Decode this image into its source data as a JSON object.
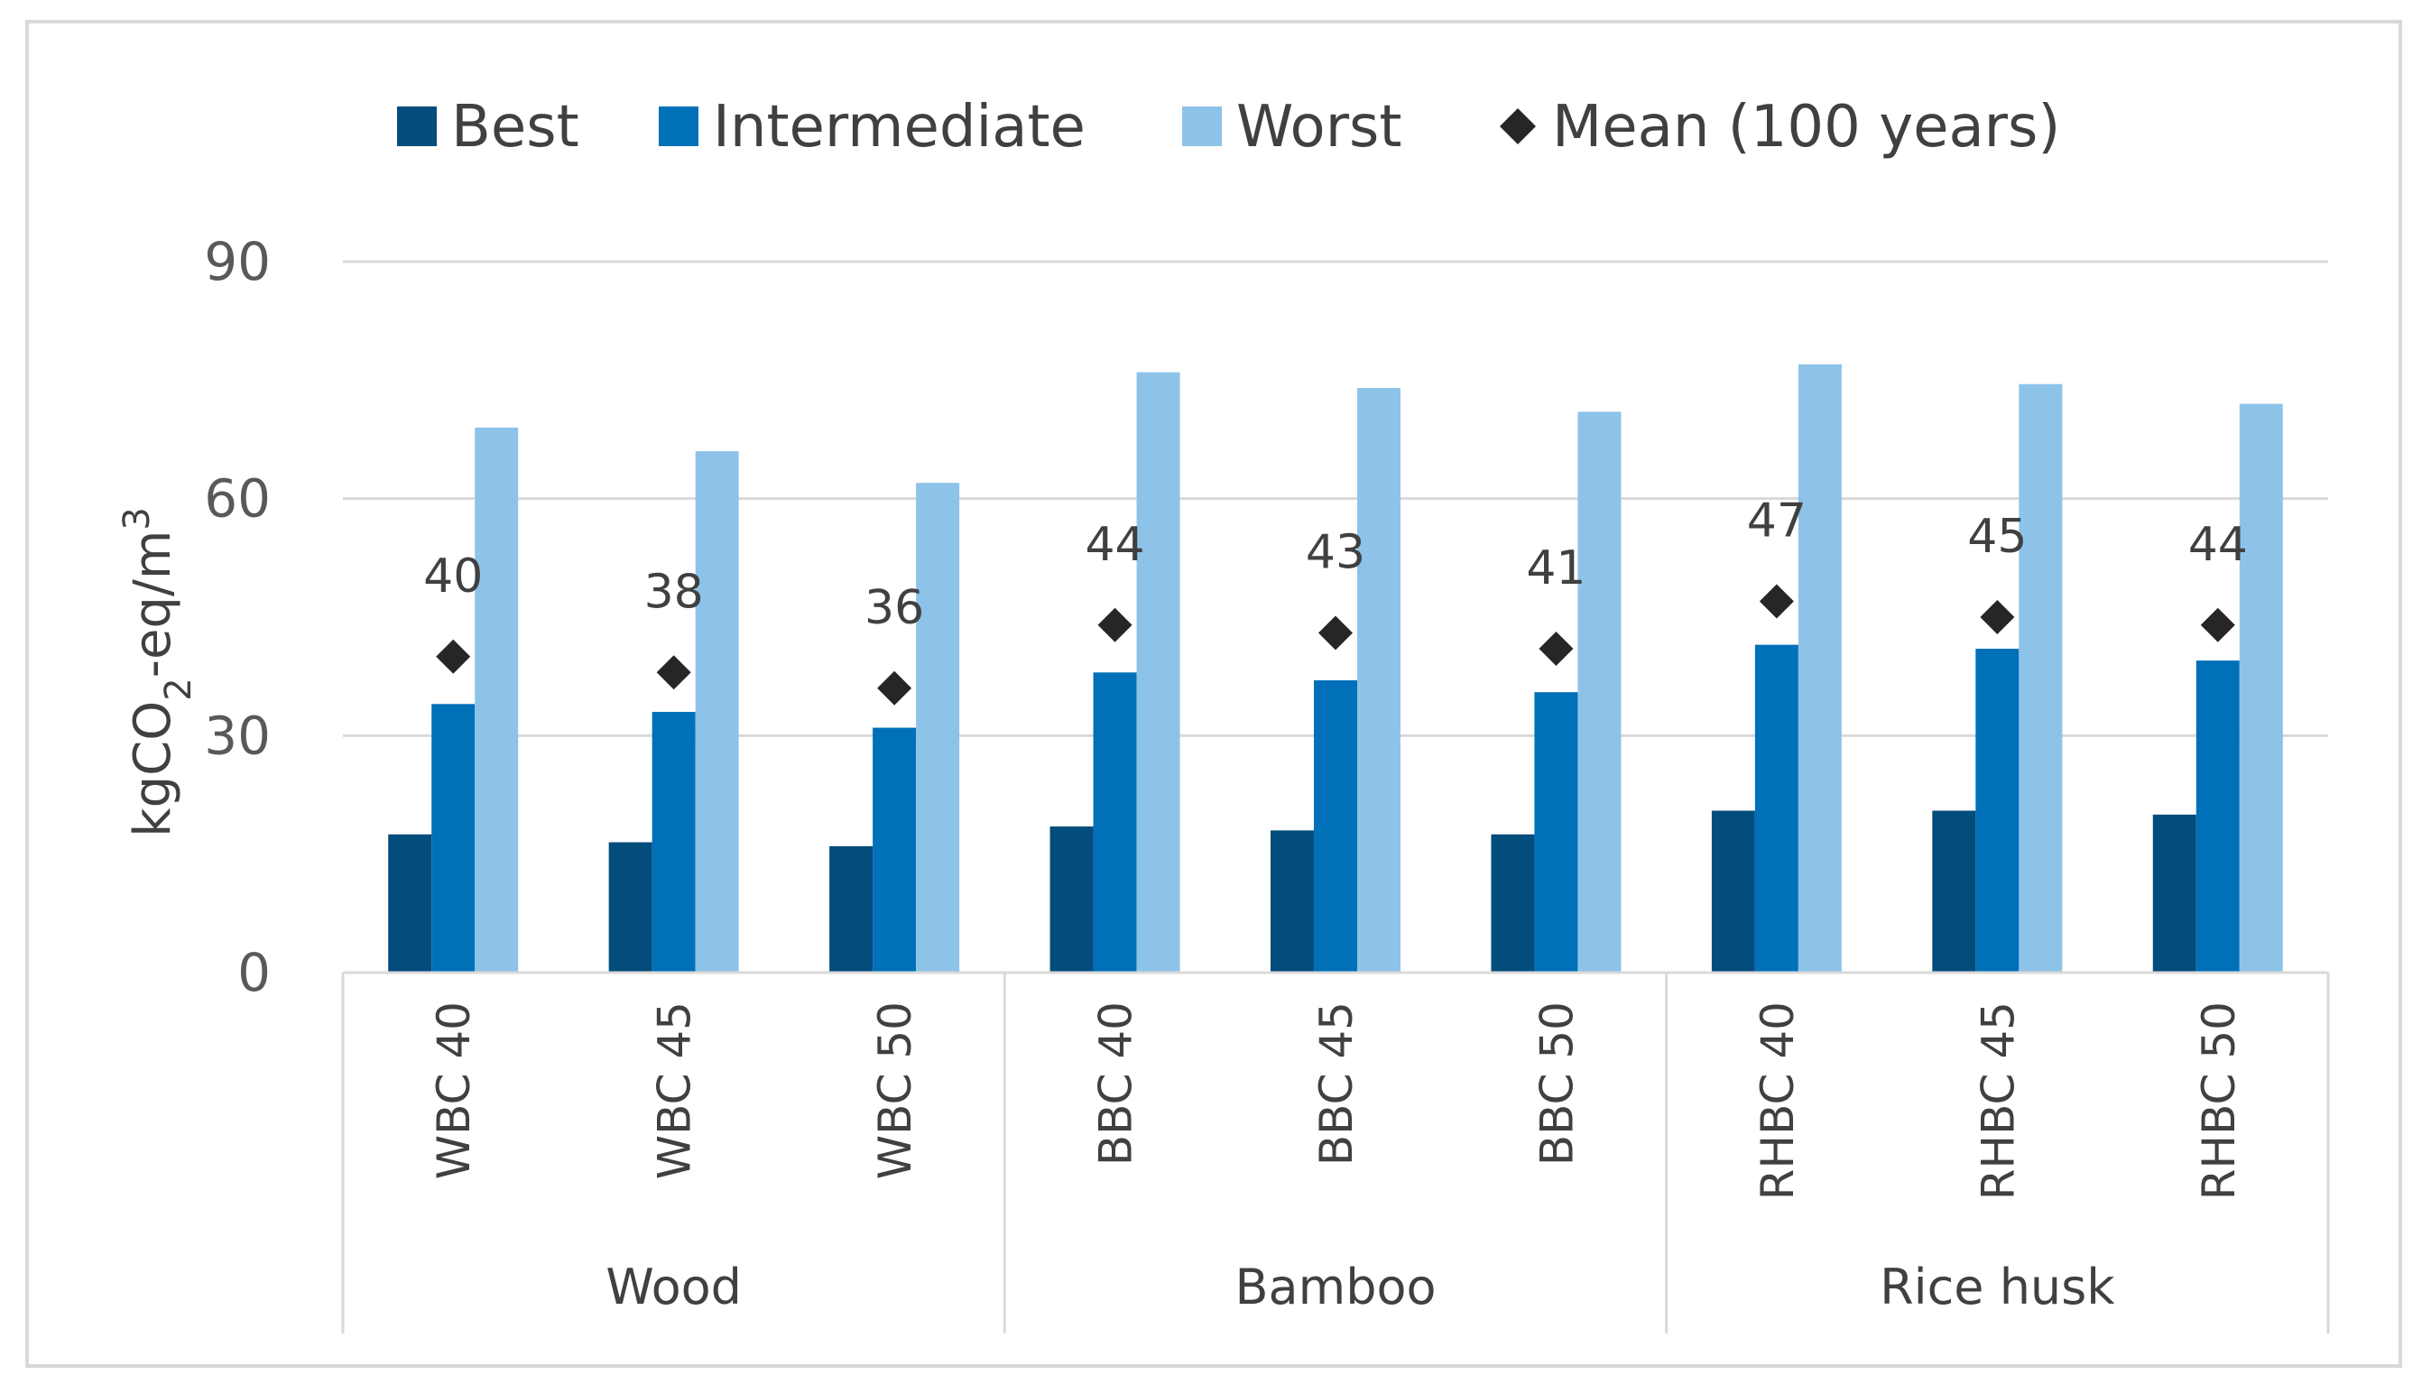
{
  "chart_data": {
    "type": "bar",
    "title": "",
    "ylabel": "kgCO₂-eq/m³",
    "xlabel": "",
    "ylim": [
      0,
      90
    ],
    "yticks": [
      0,
      30,
      60,
      90
    ],
    "grid": true,
    "legend_position": "top",
    "categories": [
      "WBC 40",
      "WBC 45",
      "WBC 50",
      "BBC 40",
      "BBC 45",
      "BBC 50",
      "RHBC 40",
      "RHBC 45",
      "RHBC 50"
    ],
    "groups": [
      {
        "label": "Wood",
        "count": 3
      },
      {
        "label": "Bamboo",
        "count": 3
      },
      {
        "label": "Rice husk",
        "count": 3
      }
    ],
    "series": [
      {
        "name": "Best",
        "color": "#034d7c",
        "values": [
          17.5,
          16.5,
          16,
          18.5,
          18,
          17.5,
          20.5,
          20.5,
          20
        ]
      },
      {
        "name": "Intermediate",
        "color": "#0070b8",
        "values": [
          34,
          33,
          31,
          38,
          37,
          35.5,
          41.5,
          41,
          39.5
        ]
      },
      {
        "name": "Worst",
        "color": "#8ec3e9",
        "values": [
          69,
          66,
          62,
          76,
          74,
          71,
          77,
          74.5,
          72
        ]
      }
    ],
    "mean_series": {
      "name": "Mean (100 years)",
      "color": "#262626",
      "marker": "diamond",
      "values": [
        40,
        38,
        36,
        44,
        43,
        41,
        47,
        45,
        44
      ],
      "labels": [
        "40",
        "38",
        "36",
        "44",
        "43",
        "41",
        "47",
        "45",
        "44"
      ]
    }
  }
}
